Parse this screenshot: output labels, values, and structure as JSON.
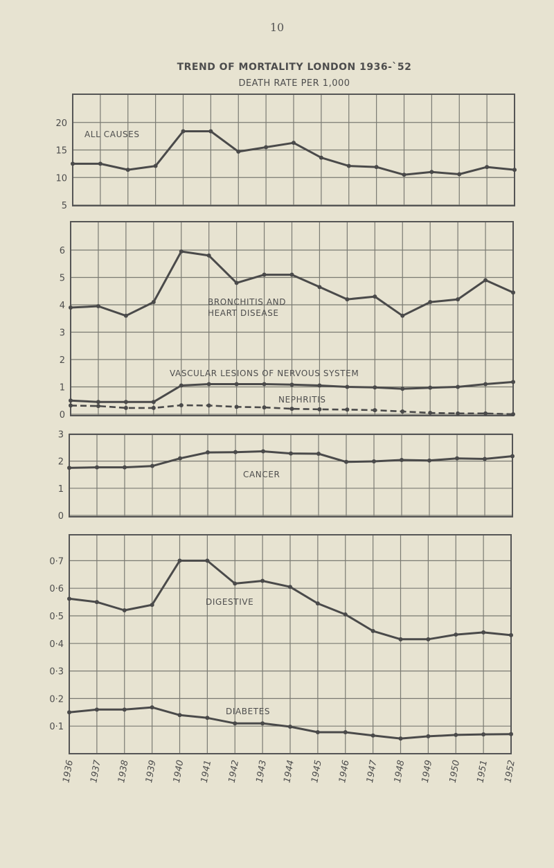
{
  "page": {
    "number": "10"
  },
  "title": "TREND OF MORTALITY   LONDON 1936-`52",
  "subtitle": "DEATH RATE PER 1,000",
  "colors": {
    "background": "#e7e3d1",
    "line": "#4a4a4a",
    "grid": "#7a7a72"
  },
  "chart_data": [
    {
      "type": "line",
      "panel": 1,
      "title": "TREND OF MORTALITY LONDON 1936-52",
      "subtitle": "DEATH RATE PER 1,000",
      "x": [
        "1936",
        "1937",
        "1938",
        "1939",
        "1940",
        "1941",
        "1942",
        "1943",
        "1944",
        "1945",
        "1946",
        "1947",
        "1948",
        "1949",
        "1950",
        "1951",
        "1952"
      ],
      "ylim": [
        5,
        25
      ],
      "yticks": [
        "20",
        "15",
        "10",
        "5"
      ],
      "grid": true,
      "series": [
        {
          "name": "ALL CAUSES",
          "style": "solid",
          "values": [
            12.5,
            12.5,
            11.4,
            12.1,
            18.4,
            18.4,
            14.7,
            15.5,
            16.3,
            13.6,
            12.1,
            11.9,
            10.5,
            11.0,
            10.6,
            11.9,
            11.4
          ]
        }
      ]
    },
    {
      "type": "line",
      "panel": 2,
      "x": [
        "1936",
        "1937",
        "1938",
        "1939",
        "1940",
        "1941",
        "1942",
        "1943",
        "1944",
        "1945",
        "1946",
        "1947",
        "1948",
        "1949",
        "1950",
        "1951",
        "1952"
      ],
      "ylim": [
        0,
        7
      ],
      "yticks": [
        "6",
        "5",
        "4",
        "3",
        "2",
        "1",
        "0"
      ],
      "grid": true,
      "series": [
        {
          "name": "BRONCHITIS AND HEART DISEASE",
          "style": "solid",
          "values": [
            3.9,
            3.95,
            3.6,
            4.1,
            5.95,
            5.8,
            4.8,
            5.1,
            5.1,
            4.65,
            4.2,
            4.3,
            3.6,
            4.1,
            4.2,
            4.9,
            4.45
          ]
        },
        {
          "name": "VASCULAR LESIONS OF NERVOUS SYSTEM",
          "style": "solid",
          "values": [
            0.5,
            0.45,
            0.45,
            0.45,
            1.05,
            1.1,
            1.1,
            1.1,
            1.08,
            1.05,
            1.0,
            0.98,
            0.93,
            0.97,
            1.0,
            1.1,
            1.18
          ]
        },
        {
          "name": "NEPHRITIS",
          "style": "dashed",
          "values": [
            0.32,
            0.3,
            0.23,
            0.23,
            0.33,
            0.32,
            0.27,
            0.25,
            0.2,
            0.18,
            0.17,
            0.15,
            0.1,
            0.05,
            0.03,
            0.03,
            0.0
          ]
        }
      ]
    },
    {
      "type": "line",
      "panel": 3,
      "x": [
        "1936",
        "1937",
        "1938",
        "1939",
        "1940",
        "1941",
        "1942",
        "1943",
        "1944",
        "1945",
        "1946",
        "1947",
        "1948",
        "1949",
        "1950",
        "1951",
        "1952"
      ],
      "ylim": [
        0,
        3
      ],
      "yticks": [
        "3",
        "2",
        "1",
        "0"
      ],
      "grid": true,
      "series": [
        {
          "name": "CANCER",
          "style": "solid",
          "values": [
            1.75,
            1.77,
            1.77,
            1.82,
            2.1,
            2.32,
            2.33,
            2.36,
            2.28,
            2.27,
            1.97,
            1.99,
            2.04,
            2.02,
            2.1,
            2.08,
            2.18
          ]
        }
      ]
    },
    {
      "type": "line",
      "panel": 4,
      "x": [
        "1936",
        "1937",
        "1938",
        "1939",
        "1940",
        "1941",
        "1942",
        "1943",
        "1944",
        "1945",
        "1946",
        "1947",
        "1948",
        "1949",
        "1950",
        "1951",
        "1952"
      ],
      "ylim": [
        0,
        0.8
      ],
      "yticks": [
        "0·7",
        "0·6",
        "0·5",
        "0·4",
        "0·3",
        "0·2",
        "0·1"
      ],
      "grid": true,
      "series": [
        {
          "name": "DIGESTIVE",
          "style": "solid",
          "values": [
            0.562,
            0.55,
            0.52,
            0.54,
            0.7,
            0.7,
            0.617,
            0.627,
            0.605,
            0.545,
            0.505,
            0.445,
            0.415,
            0.415,
            0.432,
            0.44,
            0.43
          ]
        },
        {
          "name": "DIABETES",
          "style": "solid",
          "values": [
            0.15,
            0.16,
            0.16,
            0.168,
            0.14,
            0.13,
            0.11,
            0.11,
            0.098,
            0.078,
            0.078,
            0.066,
            0.055,
            0.063,
            0.068,
            0.07,
            0.071
          ]
        }
      ]
    }
  ]
}
